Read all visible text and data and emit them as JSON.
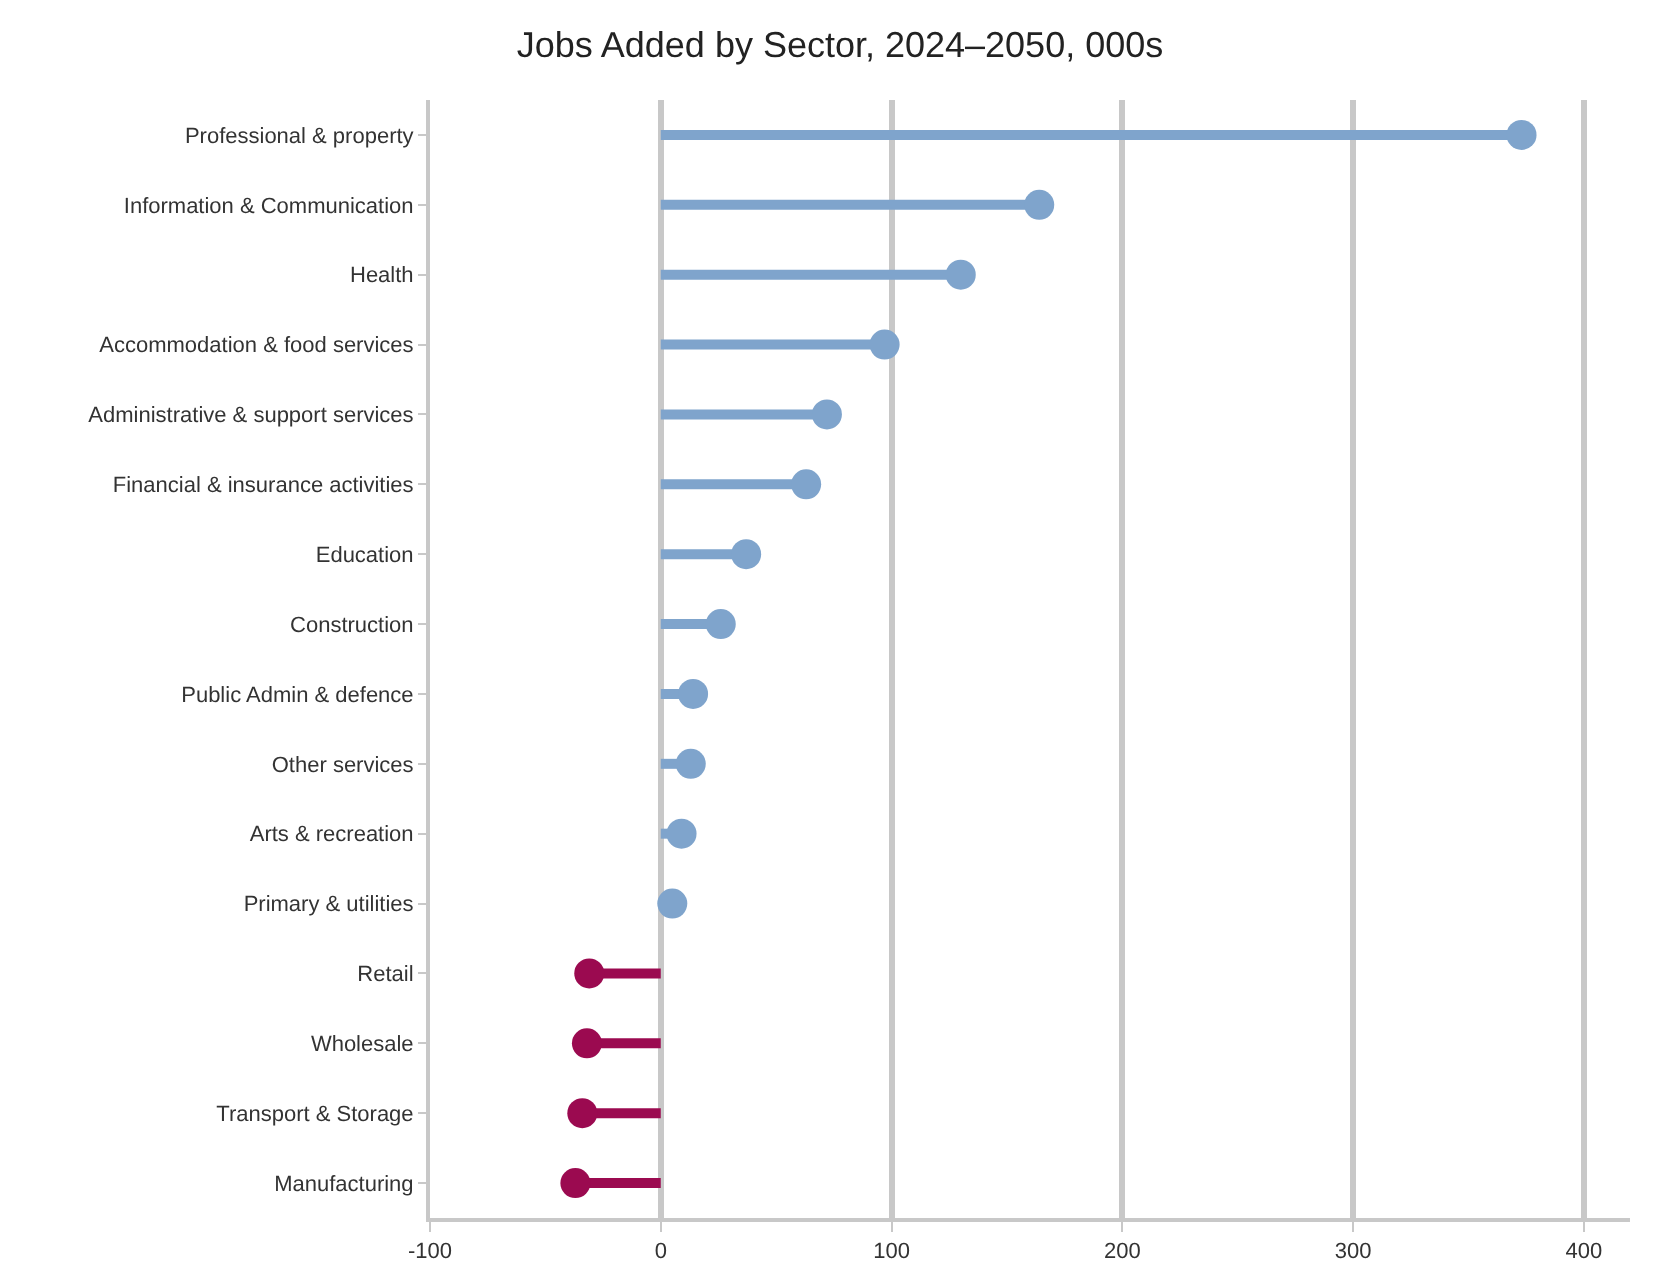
{
  "chart_data": {
    "type": "lollipop",
    "orientation": "horizontal",
    "title": "Jobs Added by Sector, 2024–2050, 000s",
    "categories": [
      "Professional & property",
      "Information & Communication",
      "Health",
      "Accommodation & food services",
      "Administrative & support services",
      "Financial & insurance activities",
      "Education",
      "Construction",
      "Public Admin & defence",
      "Other services",
      "Arts & recreation",
      "Primary & utilities",
      "Retail",
      "Wholesale",
      "Transport & Storage",
      "Manufacturing"
    ],
    "values": [
      373,
      164,
      130,
      97,
      72,
      63,
      37,
      26,
      14,
      13,
      9,
      5,
      -31,
      -32,
      -34,
      -37
    ],
    "colors": [
      "#7fa4cc",
      "#7fa4cc",
      "#7fa4cc",
      "#7fa4cc",
      "#7fa4cc",
      "#7fa4cc",
      "#7fa4cc",
      "#7fa4cc",
      "#7fa4cc",
      "#7fa4cc",
      "#7fa4cc",
      "#7fa4cc",
      "#9b0a50",
      "#9b0a50",
      "#9b0a50",
      "#9b0a50"
    ],
    "marker": "circle",
    "xlim": [
      -100,
      420
    ],
    "xticks": [
      -100,
      0,
      100,
      200,
      300,
      400
    ],
    "grid": "x"
  }
}
